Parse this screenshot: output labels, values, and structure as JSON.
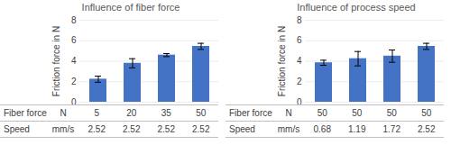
{
  "chart_data": [
    {
      "type": "bar",
      "title": "Influence of fiber force",
      "ylabel": "Friction force in N",
      "categories": [
        null,
        null,
        null,
        null
      ],
      "values": [
        2.25,
        3.8,
        4.6,
        5.45
      ],
      "errors": [
        0.3,
        0.45,
        0.15,
        0.3
      ],
      "color": "#4472c4",
      "ylim": [
        0,
        8
      ],
      "yticks": [
        0,
        2,
        4,
        6,
        8
      ],
      "grid": true,
      "tick_labels": "y",
      "table": [
        {
          "name": "Fiber force",
          "unit": "N",
          "values": [
            5,
            20,
            35,
            50
          ]
        },
        {
          "name": "Speed",
          "unit": "mm/s",
          "values": [
            2.52,
            2.52,
            2.52,
            2.52
          ]
        }
      ]
    },
    {
      "type": "bar",
      "title": "Influence of process speed",
      "ylabel": "Friction force in N",
      "categories": [
        null,
        null,
        null,
        null
      ],
      "values": [
        3.85,
        4.25,
        4.5,
        5.45
      ],
      "errors": [
        0.25,
        0.7,
        0.6,
        0.3
      ],
      "color": "#4472c4",
      "ylim": [
        0,
        8
      ],
      "yticks": [
        0,
        2,
        4,
        6,
        8
      ],
      "grid": true,
      "tick_labels": "y",
      "table": [
        {
          "name": "Fiber force",
          "unit": "N",
          "values": [
            50,
            50,
            50,
            50
          ]
        },
        {
          "name": "Speed",
          "unit": "mm/s",
          "values": [
            0.68,
            1.19,
            1.72,
            2.52
          ]
        }
      ]
    }
  ]
}
